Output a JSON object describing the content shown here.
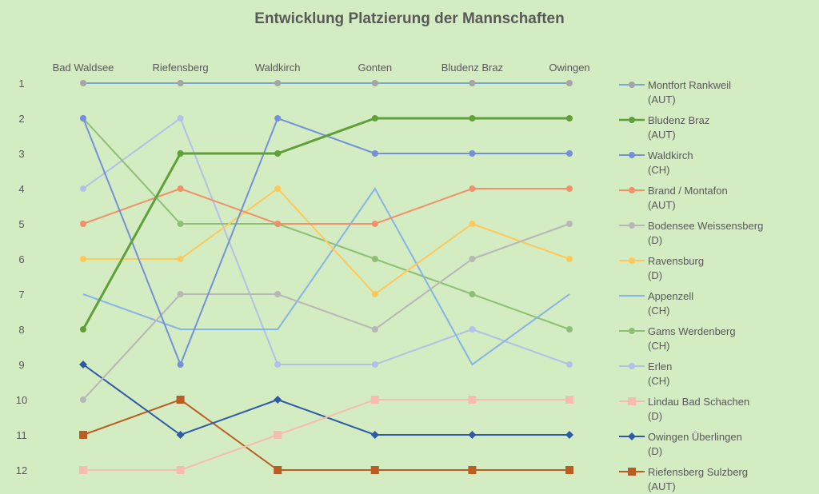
{
  "chart_data": {
    "type": "line",
    "title": "Entwicklung Platzierung der Mannschaften",
    "categories": [
      "Bad Waldsee",
      "Riefensberg",
      "Waldkirch",
      "Gonten",
      "Bludenz Braz",
      "Owingen"
    ],
    "y_ticks": [
      "1",
      "2",
      "3",
      "4",
      "5",
      "6",
      "7",
      "8",
      "9",
      "10",
      "11",
      "12"
    ],
    "ylim": [
      1,
      12
    ],
    "y_reversed": true,
    "xlabel": "",
    "ylabel": "",
    "grid": false,
    "legend_position": "right",
    "series": [
      {
        "name": "Montfort Rankweil",
        "sub": "(AUT)",
        "values": [
          1,
          1,
          1,
          1,
          1,
          1
        ],
        "color": "#5b8fd6",
        "marker_color": "#a5a5a5",
        "marker": "circle",
        "width": 1.5
      },
      {
        "name": "Bludenz Braz",
        "sub": "(AUT)",
        "values": [
          8,
          3,
          3,
          2,
          2,
          2
        ],
        "color": "#5fa03a",
        "marker_color": "#5fa03a",
        "marker": "circle",
        "width": 3
      },
      {
        "name": "Waldkirch",
        "sub": "(CH)",
        "values": [
          2,
          9,
          2,
          3,
          3,
          3
        ],
        "color": "#7490d8",
        "marker_color": "#7490d8",
        "marker": "circle",
        "width": 2
      },
      {
        "name": "Brand / Montafon",
        "sub": "(AUT)",
        "values": [
          5,
          4,
          5,
          5,
          4,
          4
        ],
        "color": "#f0916a",
        "marker_color": "#f0916a",
        "marker": "circle",
        "width": 2
      },
      {
        "name": "Bodensee Weissensberg",
        "sub": "(D)",
        "values": [
          10,
          7,
          7,
          8,
          6,
          5
        ],
        "color": "#b7b7b7",
        "marker_color": "#b7b7b7",
        "marker": "circle",
        "width": 2
      },
      {
        "name": "Ravensburg",
        "sub": "(D)",
        "values": [
          6,
          6,
          4,
          7,
          5,
          6
        ],
        "color": "#ffc85a",
        "marker_color": "#ffc85a",
        "marker": "circle",
        "width": 2
      },
      {
        "name": "Appenzell",
        "sub": "(CH)",
        "values": [
          7,
          8,
          8,
          4,
          9,
          7
        ],
        "color": "#85b4e6",
        "marker_color": "#85b4e6",
        "marker": "none",
        "width": 2
      },
      {
        "name": "Gams Werdenberg",
        "sub": "(CH)",
        "values": [
          2,
          5,
          5,
          6,
          7,
          8
        ],
        "color": "#8fbf74",
        "marker_color": "#8fbf74",
        "marker": "circle",
        "width": 2
      },
      {
        "name": "Erlen",
        "sub": "(CH)",
        "values": [
          4,
          2,
          9,
          9,
          8,
          9
        ],
        "color": "#b4c0e8",
        "marker_color": "#b4c0e8",
        "marker": "circle",
        "width": 2
      },
      {
        "name": "Lindau Bad Schachen",
        "sub": "(D)",
        "values": [
          12,
          12,
          11,
          10,
          10,
          10
        ],
        "color": "#f7bcb0",
        "marker_color": "#f7bcb0",
        "marker": "square",
        "width": 2
      },
      {
        "name": "Owingen Überlingen",
        "sub": "(D)",
        "values": [
          9,
          11,
          10,
          11,
          11,
          11
        ],
        "color": "#2f5aa8",
        "marker_color": "#2f5aa8",
        "marker": "diamond",
        "width": 2
      },
      {
        "name": "Riefensberg Sulzberg",
        "sub": "(AUT)",
        "values": [
          11,
          10,
          12,
          12,
          12,
          12
        ],
        "color": "#bb5c22",
        "marker_color": "#bb5c22",
        "marker": "square",
        "width": 2
      }
    ]
  }
}
